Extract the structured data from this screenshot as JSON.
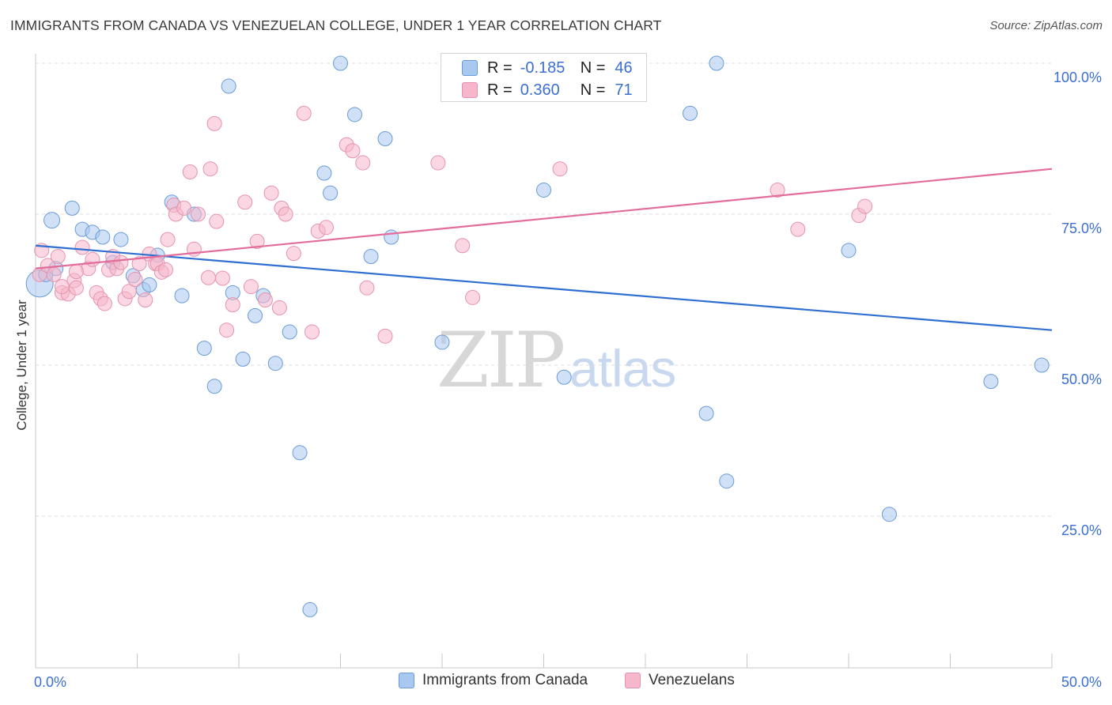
{
  "header": {
    "title": "IMMIGRANTS FROM CANADA VS VENEZUELAN COLLEGE, UNDER 1 YEAR CORRELATION CHART",
    "source": "Source: ZipAtlas.com"
  },
  "watermark": {
    "zip": "ZIP",
    "atlas": "atlas"
  },
  "legend": {
    "r_label": "R =",
    "n_label": "N =",
    "rows": [
      {
        "r": "-0.185",
        "n": "46",
        "color": "#a9c8f0"
      },
      {
        "r": "0.360",
        "n": "71",
        "color": "#f6b7cb"
      }
    ]
  },
  "colors": {
    "blue_point": "#a9c8f0",
    "blue_stroke": "#6a9bd8",
    "blue_line": "#2f6fd1",
    "pink_point": "#f6b7cb",
    "pink_stroke": "#e593ae",
    "pink_line": "#e36d9a",
    "tick_label": "#3b6fd1"
  },
  "chart_data": {
    "type": "scatter",
    "title": "IMMIGRANTS FROM CANADA VS VENEZUELAN COLLEGE, UNDER 1 YEAR CORRELATION CHART",
    "xlabel": "",
    "ylabel": "College, Under 1 year",
    "xlim": [
      0,
      50
    ],
    "ylim": [
      0,
      100
    ],
    "x_tick_labels": [
      "0.0%",
      "50.0%"
    ],
    "y_tick_labels": [
      "25.0%",
      "50.0%",
      "75.0%",
      "100.0%"
    ],
    "y_ticks": [
      25,
      50,
      75,
      100
    ],
    "grid": "horizontal dashed",
    "legend_placement": "bottom",
    "series": [
      {
        "name": "Immigrants from Canada",
        "trend": {
          "x": [
            0,
            50
          ],
          "y": [
            69.8,
            55.8
          ]
        },
        "points": [
          [
            0.2,
            63.5
          ],
          [
            0.5,
            65.0
          ],
          [
            0.8,
            74.0
          ],
          [
            1.8,
            76.0
          ],
          [
            2.3,
            72.5
          ],
          [
            2.8,
            72.0
          ],
          [
            3.3,
            71.2
          ],
          [
            3.8,
            67.0
          ],
          [
            4.2,
            70.8
          ],
          [
            4.8,
            64.8
          ],
          [
            5.3,
            62.5
          ],
          [
            5.6,
            63.3
          ],
          [
            6.0,
            68.2
          ],
          [
            6.7,
            77.0
          ],
          [
            7.2,
            61.5
          ],
          [
            7.8,
            75.0
          ],
          [
            8.3,
            52.8
          ],
          [
            8.8,
            46.5
          ],
          [
            9.5,
            96.2
          ],
          [
            9.7,
            62.0
          ],
          [
            10.2,
            51.0
          ],
          [
            10.8,
            58.2
          ],
          [
            11.2,
            61.5
          ],
          [
            11.8,
            50.3
          ],
          [
            12.5,
            55.5
          ],
          [
            13.0,
            35.5
          ],
          [
            13.5,
            9.5
          ],
          [
            14.2,
            81.8
          ],
          [
            14.5,
            78.5
          ],
          [
            15.0,
            100.0
          ],
          [
            15.7,
            91.5
          ],
          [
            16.5,
            68.0
          ],
          [
            17.2,
            87.5
          ],
          [
            17.5,
            71.2
          ],
          [
            20.0,
            53.8
          ],
          [
            25.0,
            79.0
          ],
          [
            26.0,
            48.0
          ],
          [
            32.2,
            91.7
          ],
          [
            33.0,
            42.0
          ],
          [
            33.5,
            100.0
          ],
          [
            34.0,
            30.8
          ],
          [
            40.0,
            69.0
          ],
          [
            42.0,
            25.3
          ],
          [
            47.0,
            47.3
          ],
          [
            49.5,
            50.0
          ],
          [
            1.0,
            66.0
          ]
        ]
      },
      {
        "name": "Venezuelans",
        "trend": {
          "x": [
            0,
            50
          ],
          "y": [
            66.0,
            82.5
          ]
        },
        "points": [
          [
            0.2,
            65.0
          ],
          [
            0.3,
            69.0
          ],
          [
            0.6,
            66.5
          ],
          [
            0.9,
            65.0
          ],
          [
            1.1,
            68.0
          ],
          [
            1.3,
            62.0
          ],
          [
            1.6,
            61.8
          ],
          [
            1.9,
            64.0
          ],
          [
            2.0,
            62.8
          ],
          [
            2.3,
            69.5
          ],
          [
            2.6,
            66.0
          ],
          [
            2.8,
            67.5
          ],
          [
            3.0,
            62.0
          ],
          [
            3.2,
            61.0
          ],
          [
            3.4,
            60.2
          ],
          [
            3.6,
            65.8
          ],
          [
            3.8,
            68.0
          ],
          [
            4.0,
            66.0
          ],
          [
            4.2,
            67.0
          ],
          [
            4.4,
            61.0
          ],
          [
            4.6,
            62.2
          ],
          [
            4.9,
            64.2
          ],
          [
            5.1,
            66.8
          ],
          [
            5.4,
            60.8
          ],
          [
            5.6,
            68.4
          ],
          [
            5.9,
            66.8
          ],
          [
            6.0,
            66.8
          ],
          [
            6.2,
            65.4
          ],
          [
            6.4,
            65.8
          ],
          [
            6.5,
            70.8
          ],
          [
            6.8,
            76.5
          ],
          [
            6.9,
            75.0
          ],
          [
            7.3,
            76.0
          ],
          [
            7.8,
            69.2
          ],
          [
            7.6,
            82.0
          ],
          [
            8.0,
            75.0
          ],
          [
            8.5,
            64.5
          ],
          [
            8.6,
            82.5
          ],
          [
            8.8,
            90.0
          ],
          [
            8.9,
            73.8
          ],
          [
            9.2,
            64.4
          ],
          [
            9.4,
            55.8
          ],
          [
            9.7,
            60.0
          ],
          [
            10.3,
            77.0
          ],
          [
            10.6,
            63.0
          ],
          [
            10.9,
            70.5
          ],
          [
            11.3,
            60.8
          ],
          [
            11.6,
            78.5
          ],
          [
            12.0,
            59.5
          ],
          [
            12.1,
            76.0
          ],
          [
            12.3,
            75.0
          ],
          [
            12.7,
            68.5
          ],
          [
            13.2,
            91.7
          ],
          [
            13.6,
            55.5
          ],
          [
            13.9,
            72.2
          ],
          [
            14.3,
            72.8
          ],
          [
            15.3,
            86.5
          ],
          [
            15.6,
            85.5
          ],
          [
            16.1,
            83.5
          ],
          [
            16.3,
            62.8
          ],
          [
            17.2,
            54.8
          ],
          [
            19.8,
            83.5
          ],
          [
            21.0,
            69.8
          ],
          [
            21.5,
            61.2
          ],
          [
            25.8,
            82.5
          ],
          [
            36.5,
            79.0
          ],
          [
            37.5,
            72.5
          ],
          [
            40.5,
            74.8
          ],
          [
            40.8,
            76.3
          ],
          [
            2.0,
            65.5
          ],
          [
            1.3,
            63.0
          ]
        ]
      }
    ]
  },
  "bottom_legend": {
    "items": [
      {
        "label": "Immigrants from Canada",
        "color": "#a9c8f0"
      },
      {
        "label": "Venezuelans",
        "color": "#f6b7cb"
      }
    ]
  }
}
